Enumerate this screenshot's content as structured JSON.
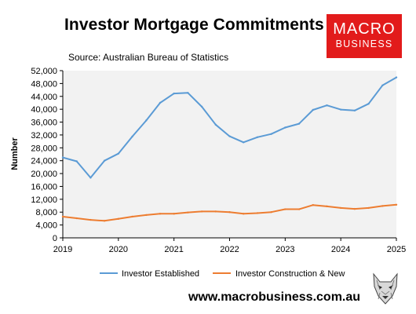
{
  "header": {
    "title": "Investor Mortgage Commitments",
    "source": "Source: Australian Bureau of Statistics"
  },
  "logo": {
    "line1": "MACRO",
    "line2": "BUSINESS",
    "color": "#e21b1b"
  },
  "footer": {
    "website": "www.macrobusiness.com.au",
    "icon": "wolf-icon"
  },
  "chart_data": {
    "type": "line",
    "title": "Investor Mortgage Commitments",
    "subtitle": "Source: Australian Bureau of Statistics",
    "xlabel": "",
    "ylabel": "Number",
    "xlim": [
      2019,
      2025
    ],
    "ylim": [
      0,
      52000
    ],
    "x_ticks": [
      "2019",
      "2020",
      "2021",
      "2022",
      "2023",
      "2024",
      "2025"
    ],
    "y_ticks": [
      "0",
      "4,000",
      "8,000",
      "12,000",
      "16,000",
      "20,000",
      "24,000",
      "28,000",
      "32,000",
      "36,000",
      "40,000",
      "44,000",
      "48,000",
      "52,000"
    ],
    "grid": false,
    "plot_background": "#f2f2f2",
    "legend_position": "bottom",
    "x": [
      2019.0,
      2019.25,
      2019.5,
      2019.75,
      2020.0,
      2020.25,
      2020.5,
      2020.75,
      2021.0,
      2021.25,
      2021.5,
      2021.75,
      2022.0,
      2022.25,
      2022.5,
      2022.75,
      2023.0,
      2023.25,
      2023.5,
      2023.75,
      2024.0,
      2024.25,
      2024.5,
      2024.75,
      2025.0
    ],
    "series": [
      {
        "name": "Investor Established",
        "color": "#5b9bd5",
        "values": [
          25000,
          23800,
          18700,
          24000,
          26200,
          31500,
          36500,
          42000,
          44900,
          45100,
          40800,
          35200,
          31600,
          29700,
          31300,
          32300,
          34300,
          35500,
          39800,
          41200,
          39900,
          39600,
          41700,
          47400,
          49900
        ]
      },
      {
        "name": "Investor Construction & New",
        "color": "#ed7d31",
        "values": [
          6600,
          6100,
          5600,
          5300,
          5900,
          6600,
          7100,
          7500,
          7500,
          7900,
          8200,
          8200,
          8000,
          7500,
          7700,
          8000,
          8900,
          8900,
          10200,
          9800,
          9300,
          9000,
          9300,
          9900,
          10300
        ]
      }
    ]
  }
}
